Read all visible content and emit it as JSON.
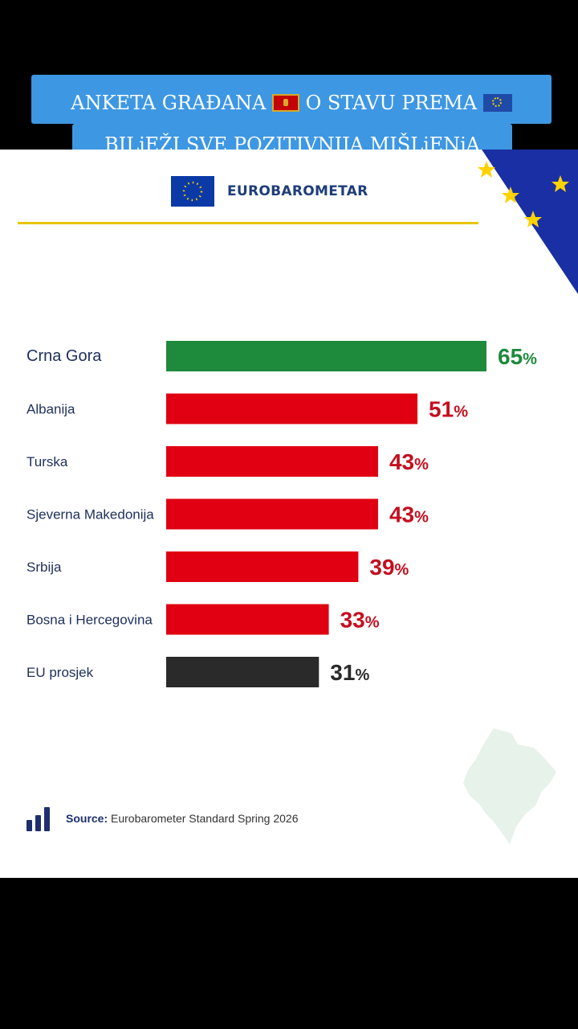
{
  "overlay": {
    "line1_a": "ANKETA GRAĐANA",
    "line1_b": "O STAVU PREMA",
    "line2": "BILjEŽI SVE POZITIVNIJA MIŠLjENjA"
  },
  "header": {
    "brand": "EUROBAROMETAR"
  },
  "chart_data": {
    "type": "bar",
    "orientation": "horizontal",
    "categories": [
      "Crna Gora",
      "Albanija",
      "Turska",
      "Sjeverna Makedonija",
      "Srbija",
      "Bosna i Hercegovina",
      "EU prosjek"
    ],
    "values": [
      65,
      51,
      43,
      43,
      39,
      33,
      31
    ],
    "labels": [
      "65",
      "51",
      "43",
      "43",
      "39",
      "33",
      "31"
    ],
    "unit": "%",
    "colors": [
      "#1e8a3c",
      "#e00012",
      "#e00012",
      "#e00012",
      "#e00012",
      "#e00012",
      "#2a2a2a"
    ],
    "label_colors": [
      "#1e8a3c",
      "#c40f1f",
      "#c40f1f",
      "#c40f1f",
      "#c40f1f",
      "#c40f1f",
      "#2a2a2a"
    ],
    "title": "",
    "xlabel": "",
    "ylabel": "",
    "xlim": [
      0,
      65
    ],
    "grid": false
  },
  "footer": {
    "source_label": "Source:",
    "source_text": "Eurobarometer Standard Spring 2026"
  }
}
